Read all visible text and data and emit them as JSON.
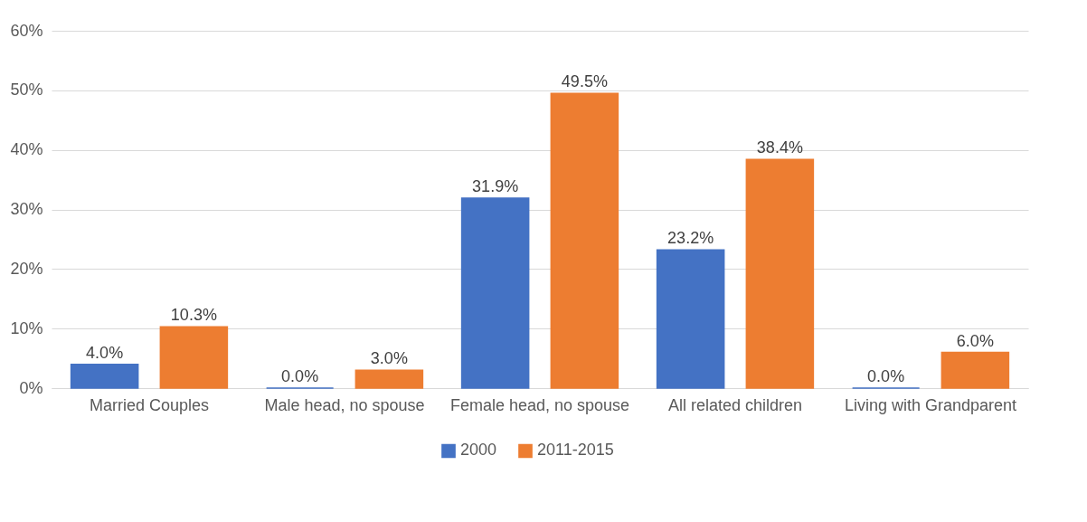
{
  "chart_data": {
    "type": "bar",
    "categories": [
      "Married Couples",
      "Male head, no spouse",
      "Female head, no spouse",
      "All related children",
      "Living with Grandparent"
    ],
    "series": [
      {
        "name": "2000",
        "color": "#4472c4",
        "values": [
          4.0,
          0.0,
          31.9,
          23.2,
          0.0
        ],
        "value_labels": [
          "4.0%",
          "0.0%",
          "31.9%",
          "23.2%",
          "0.0%"
        ]
      },
      {
        "name": "2011-2015",
        "color": "#ed7d31",
        "values": [
          10.3,
          3.0,
          49.5,
          38.4,
          6.0
        ],
        "value_labels": [
          "10.3%",
          "3.0%",
          "49.5%",
          "38.4%",
          "6.0%"
        ]
      }
    ],
    "ylim": [
      0,
      60
    ],
    "yticks": [
      {
        "value": 0,
        "label": "0%"
      },
      {
        "value": 10,
        "label": "10%"
      },
      {
        "value": 20,
        "label": "20%"
      },
      {
        "value": 30,
        "label": "30%"
      },
      {
        "value": 40,
        "label": "40%"
      },
      {
        "value": 50,
        "label": "50%"
      },
      {
        "value": 60,
        "label": "60%"
      }
    ],
    "grid": "y",
    "legend": "bottom"
  }
}
